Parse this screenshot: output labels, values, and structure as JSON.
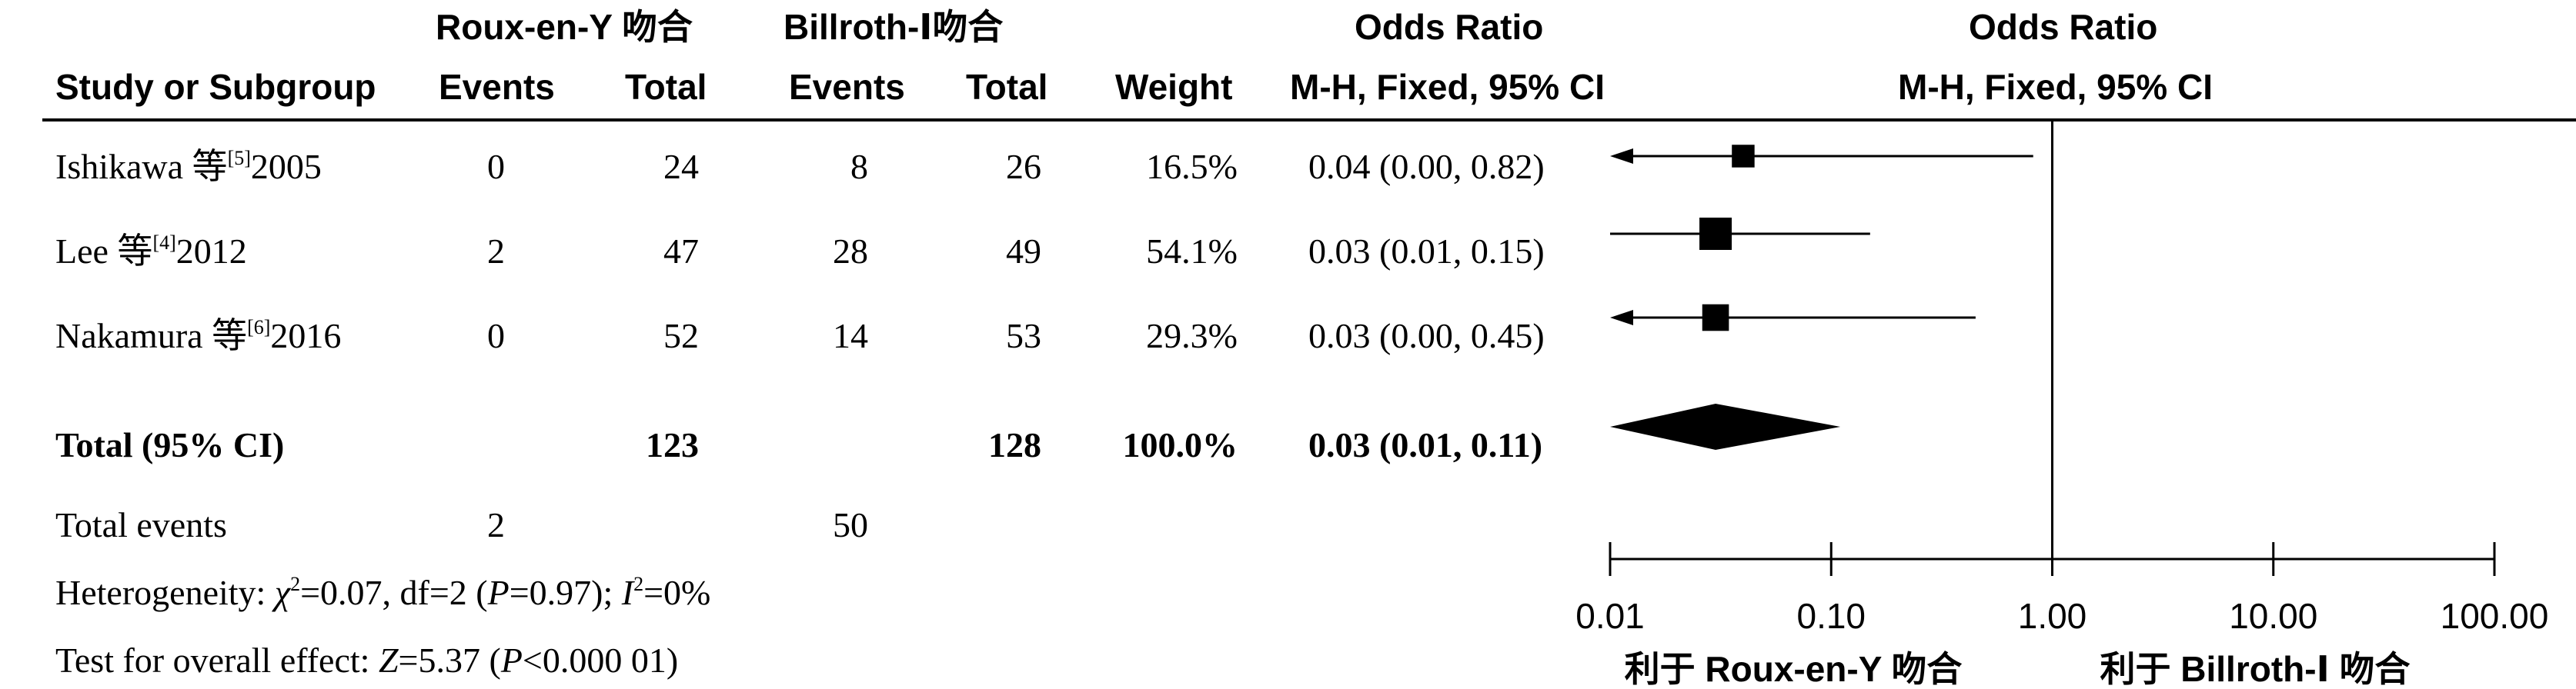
{
  "header": {
    "group1": "Roux-en-Y 吻合",
    "group2": "Billroth-Ⅰ吻合",
    "col_study": "Study or Subgroup",
    "col_events1": "Events",
    "col_total1": "Total",
    "col_events2": "Events",
    "col_total2": "Total",
    "col_weight": "Weight",
    "col_or_title": "Odds Ratio",
    "col_or_method": "M-H, Fixed, 95% CI",
    "plot_title": "Odds Ratio",
    "plot_method": "M-H, Fixed, 95% CI"
  },
  "studies": [
    {
      "name": "Ishikawa 等",
      "ref": "[5]",
      "year": "2005",
      "e1": "0",
      "t1": "24",
      "e2": "8",
      "t2": "26",
      "weight": "16.5%",
      "ci": "0.04 (0.00, 0.82)"
    },
    {
      "name": "Lee 等",
      "ref": "[4]",
      "year": "2012",
      "e1": "2",
      "t1": "47",
      "e2": "28",
      "t2": "49",
      "weight": "54.1%",
      "ci": "0.03 (0.01, 0.15)"
    },
    {
      "name": "Nakamura 等",
      "ref": "[6]",
      "year": "2016",
      "e1": "0",
      "t1": "52",
      "e2": "14",
      "t2": "53",
      "weight": "29.3%",
      "ci": "0.03 (0.00, 0.45)"
    }
  ],
  "total": {
    "label": "Total (95% CI)",
    "t1": "123",
    "t2": "128",
    "weight": "100.0%",
    "ci": "0.03 (0.01, 0.11)"
  },
  "total_events": {
    "label": "Total events",
    "e1": "2",
    "e2": "50"
  },
  "heterogeneity": {
    "prefix": "Heterogeneity: ",
    "chi_sym": "χ",
    "chi_sup": "2",
    "chi_val": "=0.07, df=2 (",
    "p_sym": "P",
    "p_val": "=0.97); ",
    "i_sym": "I",
    "i_sup": "2",
    "i_val": "=0%"
  },
  "overall": {
    "prefix": "Test for overall effect: ",
    "z_sym": "Z",
    "z_val": "=5.37 (",
    "p_sym": "P",
    "p_val": "<0.000 01)"
  },
  "chart_data": {
    "type": "forest",
    "scale": "log",
    "xlim": [
      0.01,
      100
    ],
    "ticks": [
      0.01,
      0.1,
      1,
      10,
      100
    ],
    "tick_labels": [
      "0.01",
      "0.10",
      "1.00",
      "10.00",
      "100.00"
    ],
    "null_line": 1,
    "favours_left": "利于 Roux-en-Y 吻合",
    "favours_right": "利于 Billroth-Ⅰ 吻合",
    "studies": [
      {
        "name": "Ishikawa 2005",
        "or": 0.04,
        "lower": 0.0,
        "upper": 0.82,
        "weight": 16.5
      },
      {
        "name": "Lee 2012",
        "or": 0.03,
        "lower": 0.01,
        "upper": 0.15,
        "weight": 54.1
      },
      {
        "name": "Nakamura 2016",
        "or": 0.03,
        "lower": 0.0,
        "upper": 0.45,
        "weight": 29.3
      }
    ],
    "pooled": {
      "or": 0.03,
      "lower": 0.01,
      "upper": 0.11
    }
  }
}
